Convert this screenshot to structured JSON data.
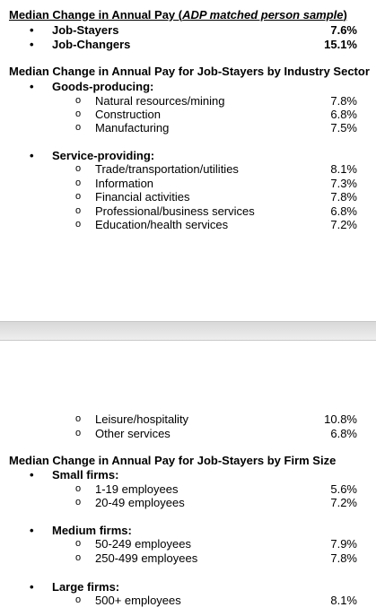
{
  "sections": [
    {
      "title_prefix": "Median Change in Annual Pay (",
      "title_italic": "ADP matched person sample",
      "title_suffix": ")",
      "items": [
        {
          "label": "Job-Stayers",
          "value": "7.6%"
        },
        {
          "label": "Job-Changers",
          "value": "15.1%"
        }
      ]
    },
    {
      "title": "Median Change in Annual Pay for Job-Stayers by Industry Sector",
      "groups": [
        {
          "label": "Goods-producing:",
          "items": [
            {
              "label": "Natural resources/mining",
              "value": "7.8%"
            },
            {
              "label": "Construction",
              "value": "6.8%"
            },
            {
              "label": "Manufacturing",
              "value": "7.5%"
            }
          ]
        },
        {
          "label": "Service-providing:",
          "items": [
            {
              "label": "Trade/transportation/utilities",
              "value": "8.1%"
            },
            {
              "label": "Information",
              "value": "7.3%"
            },
            {
              "label": "Financial activities",
              "value": "7.8%"
            },
            {
              "label": "Professional/business services",
              "value": "6.8%"
            },
            {
              "label": "Education/health services",
              "value": "7.2%"
            },
            {
              "label": "Leisure/hospitality",
              "value": "10.8%"
            },
            {
              "label": "Other services",
              "value": "6.8%"
            }
          ]
        }
      ]
    },
    {
      "title": "Median Change in Annual Pay for Job-Stayers by Firm Size",
      "groups": [
        {
          "label": "Small firms:",
          "items": [
            {
              "label": "1-19 employees",
              "value": "5.6%"
            },
            {
              "label": "20-49 employees",
              "value": "7.2%"
            }
          ]
        },
        {
          "label": "Medium firms:",
          "items": [
            {
              "label": "50-249 employees",
              "value": "7.9%"
            },
            {
              "label": "250-499 employees",
              "value": "7.8%"
            }
          ]
        },
        {
          "label": "Large firms:",
          "items": [
            {
              "label": "500+ employees",
              "value": "8.1%"
            }
          ]
        }
      ]
    }
  ]
}
